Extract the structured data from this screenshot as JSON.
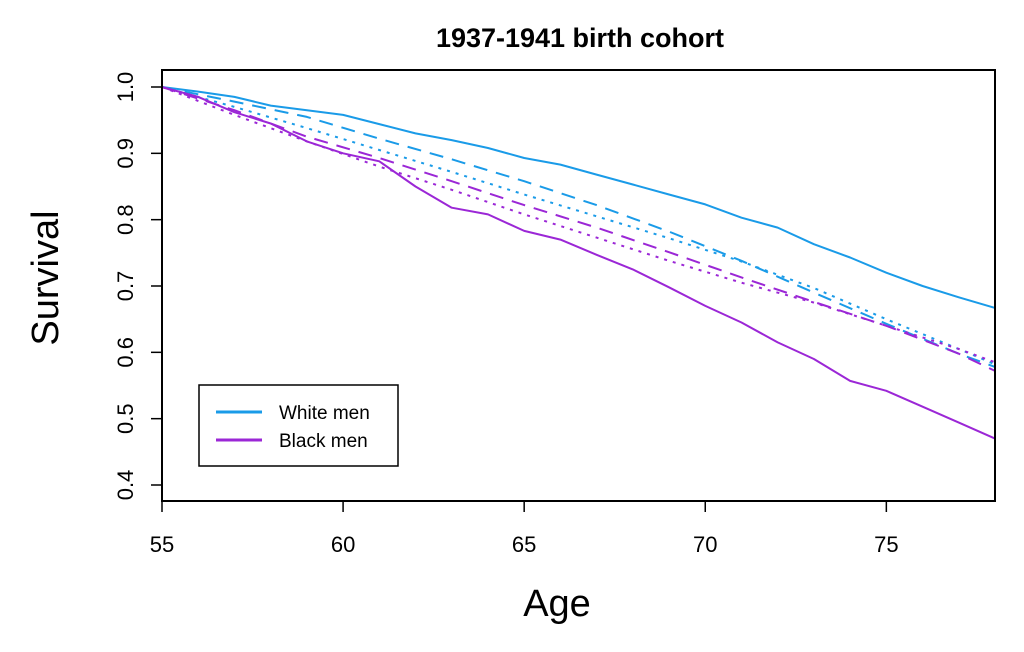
{
  "chart_data": {
    "type": "line",
    "title": "1937-1941 birth cohort",
    "xlabel": "Age",
    "ylabel": "Survival",
    "xlim": [
      55,
      78
    ],
    "ylim": [
      0.4,
      1.0
    ],
    "x_ticks": [
      "55",
      "60",
      "65",
      "70",
      "75"
    ],
    "y_ticks": [
      "0.4",
      "0.5",
      "0.6",
      "0.7",
      "0.8",
      "0.9",
      "1.0"
    ],
    "grid": false,
    "legend_position": "bottom-left",
    "legend": [
      {
        "label": "White men",
        "color": "#1a9be8"
      },
      {
        "label": "Black men",
        "color": "#9b27d6"
      }
    ],
    "series": [
      {
        "group": "White men",
        "linestyle": "solid",
        "color": "#1a9be8",
        "x": [
          55,
          56,
          57,
          58,
          59,
          60,
          61,
          62,
          63,
          64,
          65,
          66,
          67,
          68,
          69,
          70,
          71,
          72,
          73,
          74,
          75,
          76,
          77,
          78
        ],
        "y": [
          1.0,
          0.993,
          0.985,
          0.972,
          0.965,
          0.958,
          0.944,
          0.93,
          0.92,
          0.908,
          0.893,
          0.883,
          0.868,
          0.853,
          0.838,
          0.823,
          0.803,
          0.788,
          0.763,
          0.743,
          0.72,
          0.7,
          0.683,
          0.667
        ]
      },
      {
        "group": "White men",
        "linestyle": "dashed",
        "color": "#1a9be8",
        "x": [
          55,
          57,
          59,
          61,
          63,
          65,
          67,
          69,
          71,
          73,
          75,
          77,
          78
        ],
        "y": [
          1.0,
          0.978,
          0.955,
          0.922,
          0.891,
          0.858,
          0.822,
          0.782,
          0.738,
          0.69,
          0.643,
          0.598,
          0.578
        ]
      },
      {
        "group": "White men",
        "linestyle": "dotted",
        "color": "#1a9be8",
        "x": [
          55,
          57,
          59,
          61,
          63,
          65,
          67,
          69,
          71,
          73,
          75,
          77,
          78
        ],
        "y": [
          1.0,
          0.97,
          0.938,
          0.905,
          0.872,
          0.838,
          0.805,
          0.772,
          0.737,
          0.697,
          0.65,
          0.605,
          0.582
        ]
      },
      {
        "group": "Black men",
        "linestyle": "solid",
        "color": "#9b27d6",
        "x": [
          55,
          56,
          57,
          58,
          59,
          60,
          61,
          62,
          63,
          64,
          65,
          66,
          67,
          68,
          69,
          70,
          71,
          72,
          73,
          74,
          75,
          76,
          77,
          78
        ],
        "y": [
          1.0,
          0.985,
          0.962,
          0.945,
          0.918,
          0.9,
          0.888,
          0.85,
          0.818,
          0.808,
          0.783,
          0.77,
          0.747,
          0.725,
          0.698,
          0.67,
          0.645,
          0.615,
          0.59,
          0.557,
          0.542,
          0.518,
          0.494,
          0.47
        ]
      },
      {
        "group": "Black men",
        "linestyle": "dashed",
        "color": "#9b27d6",
        "x": [
          55,
          57,
          59,
          61,
          63,
          65,
          67,
          69,
          71,
          73,
          75,
          77,
          78
        ],
        "y": [
          1.0,
          0.965,
          0.925,
          0.893,
          0.858,
          0.822,
          0.788,
          0.751,
          0.713,
          0.676,
          0.64,
          0.598,
          0.572
        ]
      },
      {
        "group": "Black men",
        "linestyle": "dotted",
        "color": "#9b27d6",
        "x": [
          55,
          57,
          59,
          61,
          63,
          65,
          67,
          69,
          71,
          73,
          75,
          77,
          78
        ],
        "y": [
          1.0,
          0.958,
          0.918,
          0.88,
          0.845,
          0.808,
          0.773,
          0.738,
          0.705,
          0.675,
          0.64,
          0.605,
          0.585
        ]
      }
    ]
  }
}
